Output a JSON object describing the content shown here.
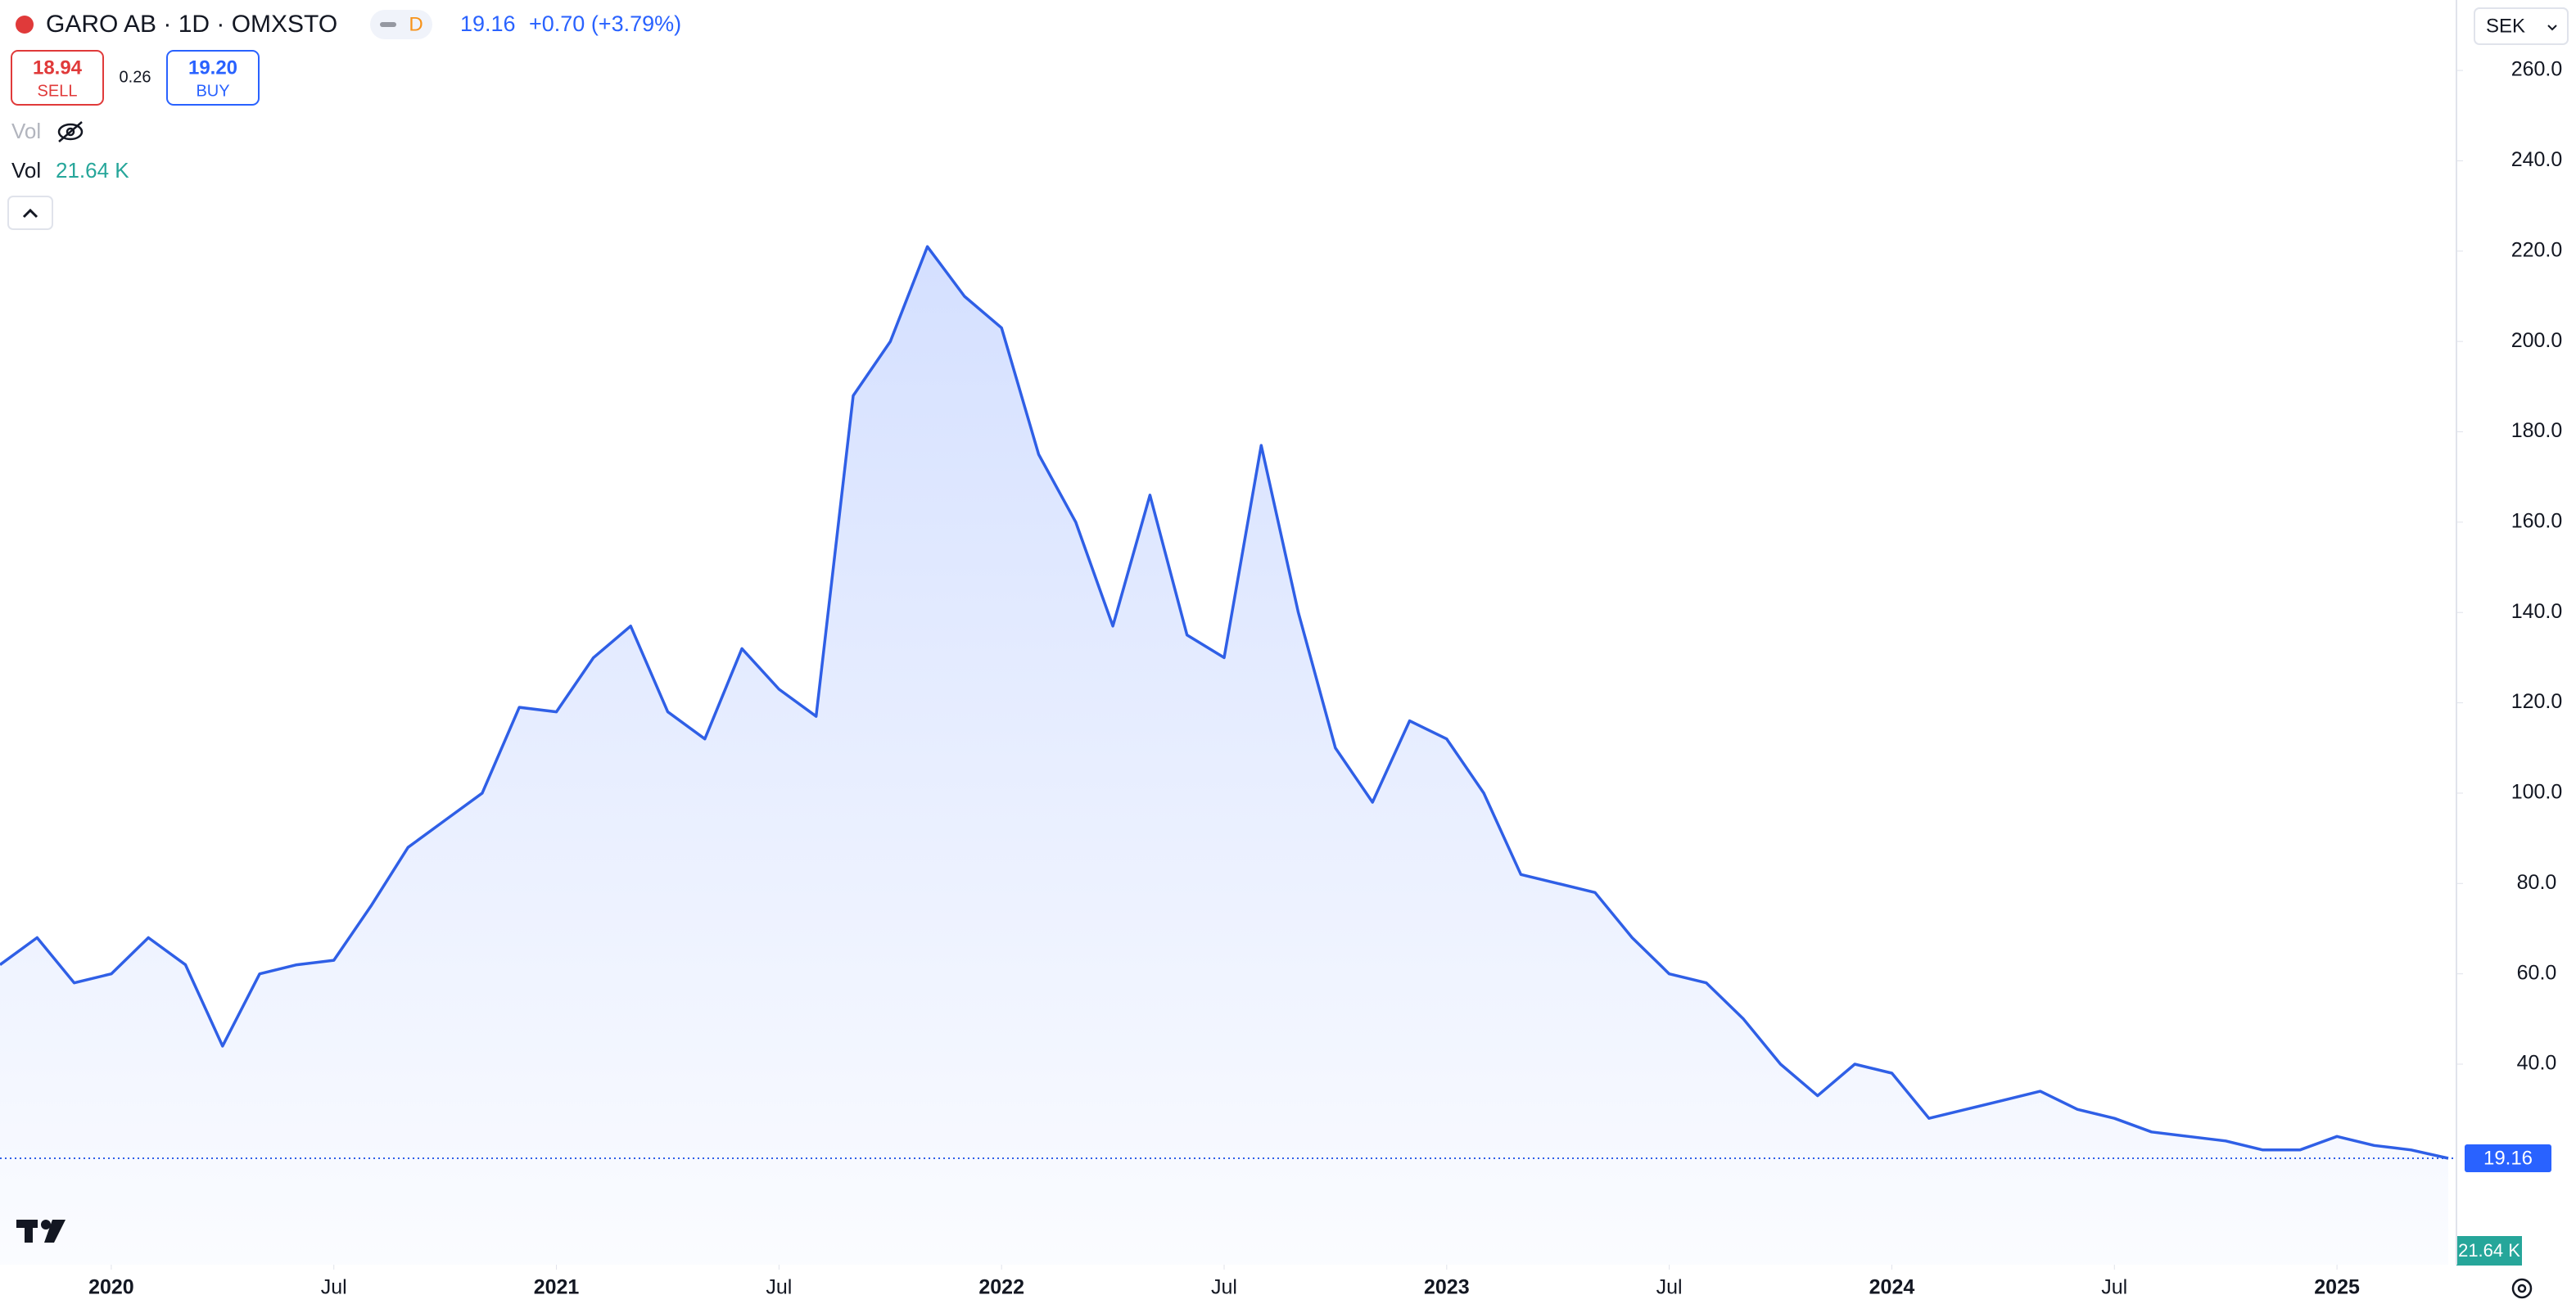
{
  "header": {
    "symbol": "GARO AB · 1D · OMXSTO",
    "interval": "D",
    "price": "19.16",
    "change": "+0.70 (+3.79%)"
  },
  "trade": {
    "sell_price": "18.94",
    "sell": "SELL",
    "spread": "0.26",
    "buy_price": "19.20",
    "buy": "BUY"
  },
  "indicators": {
    "vol_hidden": "Vol",
    "vol": "Vol",
    "vol_value": "21.64 K"
  },
  "currency": "SEK",
  "chart_data": {
    "type": "area",
    "color": "#2f5fe6",
    "x": [
      "2019-10",
      "2019-11",
      "2019-12",
      "2020-01",
      "2020-02",
      "2020-03",
      "2020-04",
      "2020-05",
      "2020-06",
      "2020-07",
      "2020-08",
      "2020-09",
      "2020-10",
      "2020-11",
      "2020-12",
      "2021-01",
      "2021-02",
      "2021-03",
      "2021-04",
      "2021-05",
      "2021-06",
      "2021-07",
      "2021-08",
      "2021-09",
      "2021-10",
      "2021-11",
      "2021-12",
      "2022-01",
      "2022-02",
      "2022-03",
      "2022-04",
      "2022-05",
      "2022-06",
      "2022-07",
      "2022-08",
      "2022-09",
      "2022-10",
      "2022-11",
      "2022-12",
      "2023-01",
      "2023-02",
      "2023-03",
      "2023-04",
      "2023-05",
      "2023-06",
      "2023-07",
      "2023-08",
      "2023-09",
      "2023-10",
      "2023-11",
      "2023-12",
      "2024-01",
      "2024-02",
      "2024-03",
      "2024-04",
      "2024-05",
      "2024-06",
      "2024-07",
      "2024-08",
      "2024-09",
      "2024-10",
      "2024-11",
      "2024-12",
      "2025-01",
      "2025-02",
      "2025-03",
      "2025-04"
    ],
    "values": [
      62,
      68,
      58,
      60,
      68,
      62,
      44,
      60,
      62,
      63,
      75,
      88,
      94,
      100,
      119,
      118,
      130,
      137,
      118,
      112,
      132,
      123,
      117,
      188,
      200,
      221,
      210,
      203,
      175,
      160,
      137,
      166,
      135,
      130,
      177,
      140,
      110,
      98,
      116,
      112,
      100,
      82,
      80,
      78,
      68,
      60,
      58,
      50,
      40,
      33,
      40,
      38,
      28,
      30,
      32,
      34,
      30,
      28,
      25,
      24,
      23,
      21,
      21,
      24,
      22,
      21,
      19.16
    ],
    "xlim": [
      "2019-10",
      "2025-04"
    ],
    "xticks": [
      {
        "value": "2020-01",
        "label": "2020"
      },
      {
        "value": "2020-07",
        "label": "Jul"
      },
      {
        "value": "2021-01",
        "label": "2021"
      },
      {
        "value": "2021-07",
        "label": "Jul"
      },
      {
        "value": "2022-01",
        "label": "2022"
      },
      {
        "value": "2022-07",
        "label": "Jul"
      },
      {
        "value": "2023-01",
        "label": "2023"
      },
      {
        "value": "2023-07",
        "label": "Jul"
      },
      {
        "value": "2024-01",
        "label": "2024"
      },
      {
        "value": "2024-07",
        "label": "Jul"
      },
      {
        "value": "2025-01",
        "label": "2025"
      }
    ],
    "ylim": [
      -4.4,
      275.6
    ],
    "yticks": [
      {
        "value": 40,
        "label": "40.0"
      },
      {
        "value": 60,
        "label": "60.0"
      },
      {
        "value": 80,
        "label": "80.0"
      },
      {
        "value": 100,
        "label": "100.0"
      },
      {
        "value": 120,
        "label": "120.0"
      },
      {
        "value": 140,
        "label": "140.0"
      },
      {
        "value": 160,
        "label": "160.0"
      },
      {
        "value": 180,
        "label": "180.0"
      },
      {
        "value": 200,
        "label": "200.0"
      },
      {
        "value": 220,
        "label": "220.0"
      },
      {
        "value": 240,
        "label": "240.0"
      },
      {
        "value": 260,
        "label": "260.0"
      }
    ],
    "grid": false
  }
}
